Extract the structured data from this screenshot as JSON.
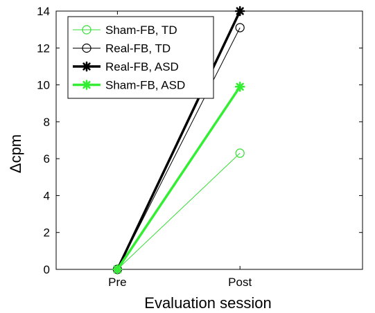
{
  "chart_data": {
    "type": "line",
    "title": "",
    "xlabel": "Evaluation session",
    "ylabel": "Δcpm",
    "categories": [
      "Pre",
      "Post"
    ],
    "ylim": [
      0,
      14
    ],
    "yticks": [
      0,
      2,
      4,
      6,
      8,
      10,
      12,
      14
    ],
    "xlim": [
      0.5,
      3
    ],
    "grid": false,
    "legend": "top-left",
    "series": [
      {
        "name": "Sham-FB, TD",
        "values": [
          0,
          6.3
        ],
        "color": "#33dd33",
        "marker": "circle",
        "line_width": "thin"
      },
      {
        "name": "Real-FB, TD",
        "values": [
          0,
          13.1
        ],
        "color": "#000000",
        "marker": "circle",
        "line_width": "thin"
      },
      {
        "name": "Real-FB, ASD",
        "values": [
          0,
          14.0
        ],
        "color": "#000000",
        "marker": "asterisk",
        "line_width": "thick"
      },
      {
        "name": "Sham-FB, ASD",
        "values": [
          0,
          9.9
        ],
        "color": "#33ee33",
        "marker": "asterisk",
        "line_width": "thick"
      }
    ]
  }
}
